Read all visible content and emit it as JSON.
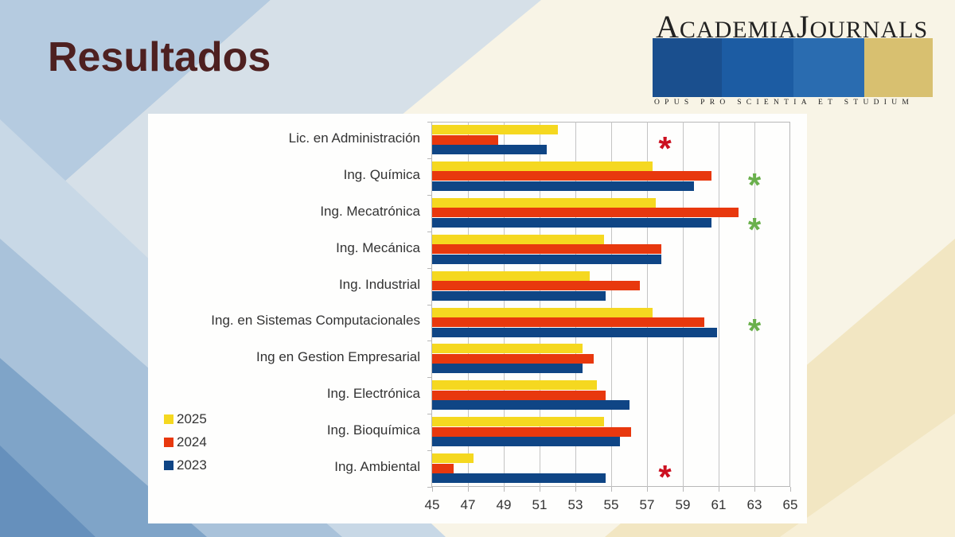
{
  "slide": {
    "title": "Resultados"
  },
  "logo": {
    "name_first_initial": "A",
    "name_first_rest": "CADEMIA",
    "name_second_initial": "J",
    "name_second_rest": "OURNALS",
    "motto": "OPUS PRO SCIENTIA ET STUDIUM",
    "bar_colors": [
      "#1a4f8e",
      "#1c5ca3",
      "#2a6cb0",
      "#d8c070"
    ]
  },
  "colors": {
    "2025": "#f5d820",
    "2024": "#e8380e",
    "2023": "#0f4585",
    "significant_negative": "#cc1020",
    "significant_positive": "#6ab04c"
  },
  "legend": [
    {
      "label": "2025",
      "color": "#f5d820"
    },
    {
      "label": "2024",
      "color": "#e8380e"
    },
    {
      "label": "2023",
      "color": "#0f4585"
    }
  ],
  "chart_data": {
    "type": "bar",
    "orientation": "horizontal",
    "title": "",
    "xlabel": "",
    "ylabel": "",
    "xlim": [
      45,
      65
    ],
    "x_ticks": [
      45,
      47,
      49,
      51,
      53,
      55,
      57,
      59,
      61,
      63,
      65
    ],
    "grid": true,
    "legend_position": "left-bottom",
    "categories": [
      "Lic. en Administración",
      "Ing. Química",
      "Ing. Mecatrónica",
      "Ing. Mecánica",
      "Ing. Industrial",
      "Ing. en Sistemas Computacionales",
      "Ing en Gestion Empresarial",
      "Ing. Electrónica",
      "Ing. Bioquímica",
      "Ing. Ambiental"
    ],
    "series": [
      {
        "name": "2025",
        "color": "#f5d820",
        "values": [
          52.0,
          57.3,
          57.5,
          54.6,
          53.8,
          57.3,
          53.4,
          54.2,
          54.6,
          47.3
        ]
      },
      {
        "name": "2024",
        "color": "#e8380e",
        "values": [
          48.7,
          60.6,
          62.1,
          57.8,
          56.6,
          60.2,
          54.0,
          54.7,
          56.1,
          46.2
        ]
      },
      {
        "name": "2023",
        "color": "#0f4585",
        "values": [
          51.4,
          59.6,
          60.6,
          57.8,
          54.7,
          60.9,
          53.4,
          56.0,
          55.5,
          54.7
        ]
      }
    ],
    "annotations": [
      {
        "category": "Lic. en Administración",
        "symbol": "*",
        "color": "#cc1020",
        "x": 58.0
      },
      {
        "category": "Ing. Química",
        "symbol": "*",
        "color": "#6ab04c",
        "x": 63.0
      },
      {
        "category": "Ing. Mecatrónica",
        "symbol": "*",
        "color": "#6ab04c",
        "x": 63.0
      },
      {
        "category": "Ing. en Sistemas Computacionales",
        "symbol": "*",
        "color": "#6ab04c",
        "x": 63.0
      },
      {
        "category": "Ing. Ambiental",
        "symbol": "*",
        "color": "#cc1020",
        "x": 58.0
      }
    ]
  }
}
